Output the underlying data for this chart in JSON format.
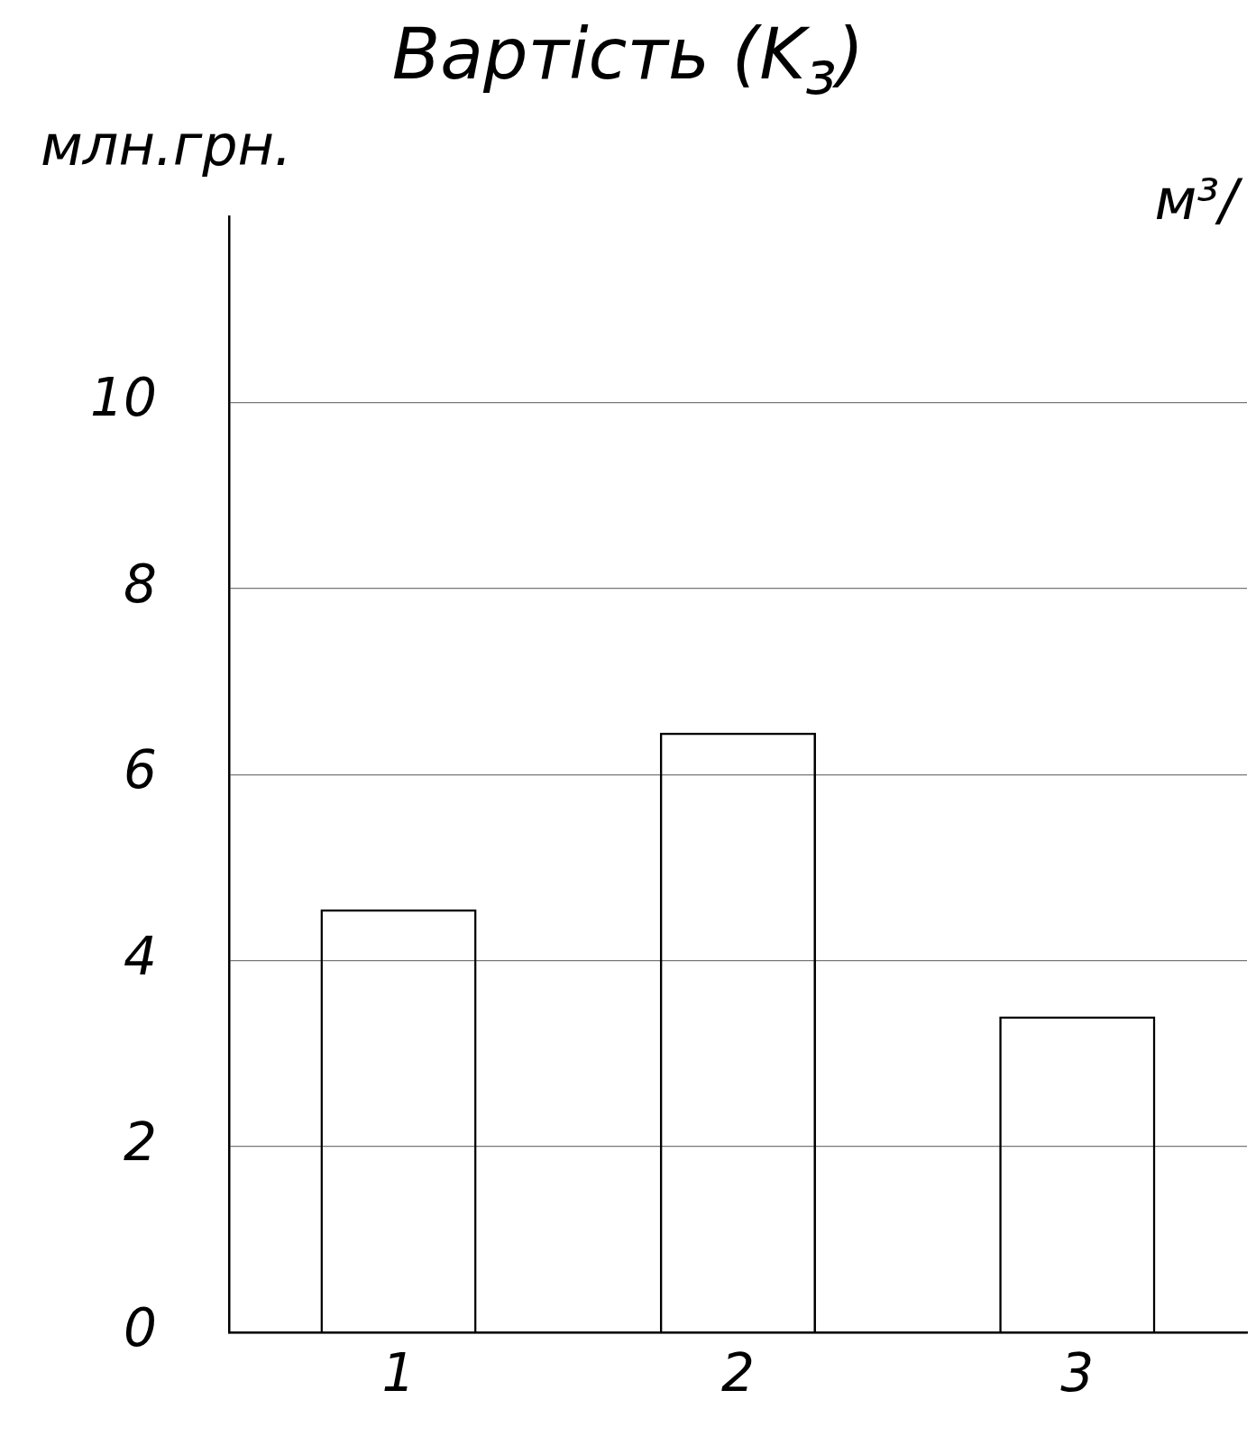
{
  "chart_data": {
    "type": "bar",
    "title": "Вартість (K$_{з}$)",
    "ylabel": "млн.грн.",
    "annotations": [
      "м³/"
    ],
    "categories": [
      "1",
      "2",
      "3"
    ],
    "values": [
      4.55,
      6.45,
      3.4
    ],
    "color": "#000000",
    "ylim": [
      0,
      12
    ],
    "yticks": [
      0,
      2,
      4,
      6,
      8,
      10
    ],
    "grid": "y"
  }
}
